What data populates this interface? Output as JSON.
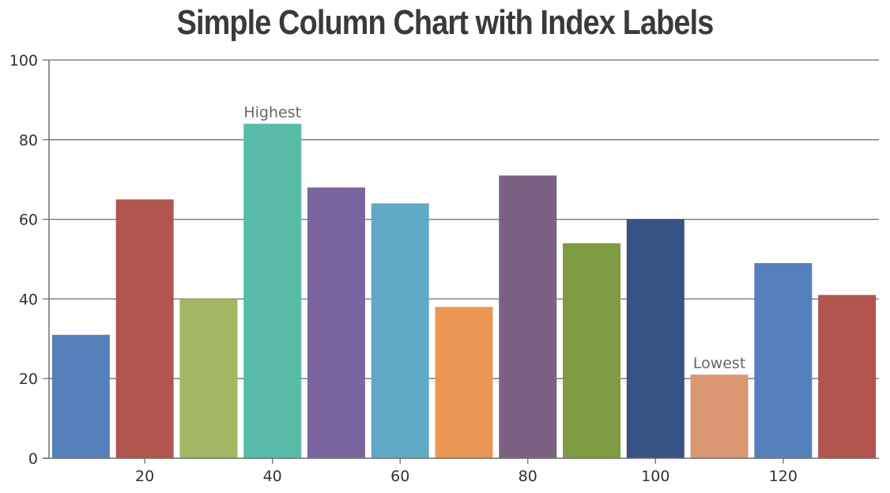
{
  "chart_data": {
    "type": "bar",
    "title": "Simple Column Chart with Index Labels",
    "xlabel": "",
    "ylabel": "",
    "x": [
      10,
      20,
      30,
      40,
      50,
      60,
      70,
      80,
      90,
      100,
      110,
      120,
      130
    ],
    "values": [
      31,
      65,
      40,
      84,
      68,
      64,
      38,
      71,
      54,
      60,
      21,
      49,
      41
    ],
    "index_labels": [
      "",
      "",
      "",
      "Highest",
      "",
      "",
      "",
      "",
      "",
      "",
      "Lowest",
      "",
      ""
    ],
    "colors": [
      "#5680bc",
      "#b2554f",
      "#a2b663",
      "#57bba8",
      "#7b65a0",
      "#5fa9c5",
      "#ea9755",
      "#7c6182",
      "#7e9c42",
      "#365384",
      "#db9772",
      "#5680bc",
      "#b2554f"
    ],
    "ylim": [
      0,
      100
    ],
    "yticks": [
      0,
      20,
      40,
      60,
      80,
      100
    ],
    "xticks": [
      20,
      40,
      60,
      80,
      100,
      120
    ],
    "xlim": [
      5,
      135
    ],
    "grid": true,
    "legend": "none"
  }
}
